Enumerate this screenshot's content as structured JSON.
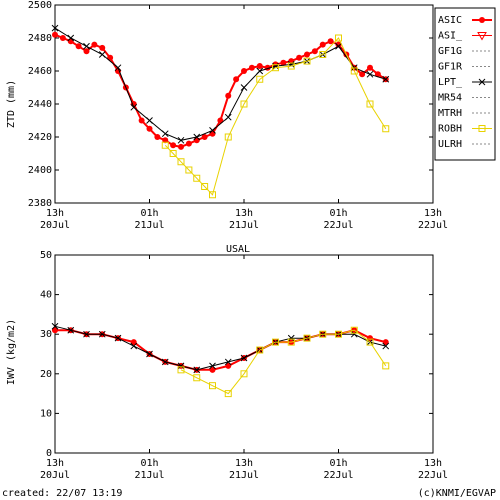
{
  "footer": {
    "created": "created: 22/07 13:19",
    "credit": "(c)KNMI/EGVAP"
  },
  "chart_data": [
    {
      "type": "line",
      "title": "",
      "ylabel": "ZTD (mm)",
      "xlabel": "",
      "xlim": [
        0,
        42
      ],
      "ylim": [
        2380,
        2500
      ],
      "yticks": [
        2380,
        2400,
        2420,
        2440,
        2460,
        2480,
        2500
      ],
      "xticks": [
        {
          "x": 0,
          "line1": "13h",
          "line2": "20Jul"
        },
        {
          "x": 12,
          "line1": "01h",
          "line2": "21Jul"
        },
        {
          "x": 24,
          "line1": "13h",
          "line2": "21Jul"
        },
        {
          "x": 36,
          "line1": "01h",
          "line2": "22Jul"
        },
        {
          "x": 48,
          "line1": "13h",
          "line2": "22Jul"
        }
      ],
      "legend_position": "right",
      "series": [
        {
          "name": "ASIC",
          "color": "#ff0000",
          "marker": "dot",
          "x": [
            0,
            1,
            2,
            3,
            4,
            5,
            6,
            7,
            8,
            9,
            10,
            11,
            12,
            13,
            14,
            15,
            16,
            17,
            18,
            19,
            20,
            21,
            22,
            23,
            24,
            25,
            26,
            27,
            28,
            29,
            30,
            31,
            32,
            33,
            34,
            35,
            36,
            37,
            38,
            39,
            40,
            41,
            42
          ],
          "y": [
            2482,
            2480,
            2478,
            2475,
            2472,
            2476,
            2474,
            2468,
            2460,
            2450,
            2440,
            2430,
            2425,
            2420,
            2418,
            2415,
            2414,
            2416,
            2418,
            2420,
            2422,
            2430,
            2445,
            2455,
            2460,
            2462,
            2463,
            2462,
            2464,
            2465,
            2466,
            2468,
            2470,
            2472,
            2476,
            2478,
            2476,
            2470,
            2462,
            2458,
            2462,
            2458,
            2455
          ]
        },
        {
          "name": "ASI_",
          "color": "#ff0000",
          "marker": "triangle",
          "x": [],
          "y": []
        },
        {
          "name": "GF1G",
          "color": "#888888",
          "marker": "none",
          "x": [],
          "y": []
        },
        {
          "name": "GF1R",
          "color": "#888888",
          "marker": "none",
          "x": [],
          "y": []
        },
        {
          "name": "LPT_",
          "color": "#000000",
          "marker": "x",
          "x": [
            0,
            2,
            4,
            6,
            8,
            10,
            12,
            14,
            16,
            18,
            20,
            22,
            24,
            26,
            28,
            30,
            32,
            34,
            36,
            38,
            40,
            42
          ],
          "y": [
            2486,
            2480,
            2475,
            2470,
            2462,
            2438,
            2430,
            2422,
            2418,
            2420,
            2424,
            2432,
            2450,
            2460,
            2463,
            2464,
            2466,
            2470,
            2475,
            2462,
            2458,
            2455
          ]
        },
        {
          "name": "MR54",
          "color": "#888888",
          "marker": "none",
          "x": [],
          "y": []
        },
        {
          "name": "MTRH",
          "color": "#888888",
          "marker": "none",
          "x": [],
          "y": []
        },
        {
          "name": "ROBH",
          "color": "#e8d200",
          "marker": "square",
          "x": [
            14,
            15,
            16,
            17,
            18,
            19,
            20,
            22,
            24,
            26,
            28,
            30,
            32,
            34,
            36,
            38,
            40,
            42
          ],
          "y": [
            2415,
            2410,
            2405,
            2400,
            2395,
            2390,
            2385,
            2420,
            2440,
            2455,
            2462,
            2463,
            2466,
            2470,
            2480,
            2460,
            2440,
            2425
          ]
        },
        {
          "name": "ULRH",
          "color": "#888888",
          "marker": "none",
          "x": [],
          "y": []
        }
      ]
    },
    {
      "type": "line",
      "title": "USAL",
      "ylabel": "IWV (kg/m2)",
      "xlabel": "",
      "xlim": [
        0,
        42
      ],
      "ylim": [
        0,
        50
      ],
      "yticks": [
        0,
        10,
        20,
        30,
        40,
        50
      ],
      "xticks": [
        {
          "x": 0,
          "line1": "13h",
          "line2": "20Jul"
        },
        {
          "x": 12,
          "line1": "01h",
          "line2": "21Jul"
        },
        {
          "x": 24,
          "line1": "13h",
          "line2": "21Jul"
        },
        {
          "x": 36,
          "line1": "01h",
          "line2": "22Jul"
        },
        {
          "x": 48,
          "line1": "13h",
          "line2": "22Jul"
        }
      ],
      "series": [
        {
          "name": "ASIC",
          "color": "#ff0000",
          "marker": "dot",
          "x": [
            0,
            2,
            4,
            6,
            8,
            10,
            12,
            14,
            16,
            18,
            20,
            22,
            24,
            26,
            28,
            30,
            32,
            34,
            36,
            38,
            40,
            42
          ],
          "y": [
            31,
            31,
            30,
            30,
            29,
            28,
            25,
            23,
            22,
            21,
            21,
            22,
            24,
            26,
            28,
            28,
            29,
            30,
            30,
            31,
            29,
            28
          ]
        },
        {
          "name": "LPT_",
          "color": "#000000",
          "marker": "x",
          "x": [
            0,
            2,
            4,
            6,
            8,
            10,
            12,
            14,
            16,
            18,
            20,
            22,
            24,
            26,
            28,
            30,
            32,
            34,
            36,
            38,
            40,
            42
          ],
          "y": [
            32,
            31,
            30,
            30,
            29,
            27,
            25,
            23,
            22,
            21,
            22,
            23,
            24,
            26,
            28,
            29,
            29,
            30,
            30,
            30,
            28,
            27
          ]
        },
        {
          "name": "ROBH",
          "color": "#e8d200",
          "marker": "square",
          "x": [
            16,
            18,
            20,
            22,
            24,
            26,
            28,
            30,
            32,
            34,
            36,
            38,
            40,
            42
          ],
          "y": [
            21,
            19,
            17,
            15,
            20,
            26,
            28,
            28,
            29,
            30,
            30,
            31,
            28,
            22
          ]
        }
      ]
    }
  ]
}
